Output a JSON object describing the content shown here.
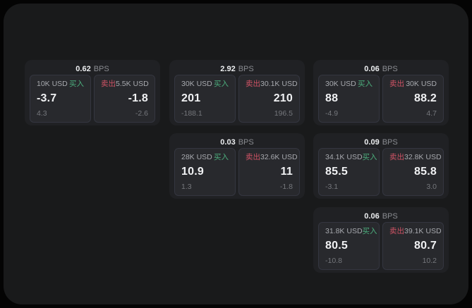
{
  "page": {
    "background": "#040404",
    "panel_background": "#191a1b"
  },
  "labels": {
    "buy": "买入",
    "sell": "卖出",
    "bps_unit": "BPS"
  },
  "colors": {
    "buy_green": "#4cae7d",
    "sell_red": "#cf5365",
    "card_background": "#202124",
    "tile_background": "#28292d"
  },
  "cards": [
    {
      "bps": "0.62",
      "buy": {
        "amount": "10K USD",
        "value": "-3.7",
        "change": "4.3"
      },
      "sell": {
        "amount": "5.5K USD",
        "value": "-1.8",
        "change": "-2.6"
      }
    },
    {
      "bps": "2.92",
      "buy": {
        "amount": "30K USD",
        "value": "201",
        "change": "-188.1"
      },
      "sell": {
        "amount": "30.1K USD",
        "value": "210",
        "change": "196.5"
      }
    },
    {
      "bps": "0.06",
      "buy": {
        "amount": "30K USD",
        "value": "88",
        "change": "-4.9"
      },
      "sell": {
        "amount": "30K USD",
        "value": "88.2",
        "change": "4.7"
      }
    },
    {
      "bps": "0.03",
      "buy": {
        "amount": "28K USD",
        "value": "10.9",
        "change": "1.3"
      },
      "sell": {
        "amount": "32.6K USD",
        "value": "11",
        "change": "-1.8"
      }
    },
    {
      "bps": "0.09",
      "buy": {
        "amount": "34.1K USD",
        "value": "85.5",
        "change": "-3.1"
      },
      "sell": {
        "amount": "32.8K USD",
        "value": "85.8",
        "change": "3.0"
      }
    },
    {
      "bps": "0.06",
      "buy": {
        "amount": "31.8K USD",
        "value": "80.5",
        "change": "-10.8"
      },
      "sell": {
        "amount": "39.1K USD",
        "value": "80.7",
        "change": "10.2"
      }
    }
  ]
}
